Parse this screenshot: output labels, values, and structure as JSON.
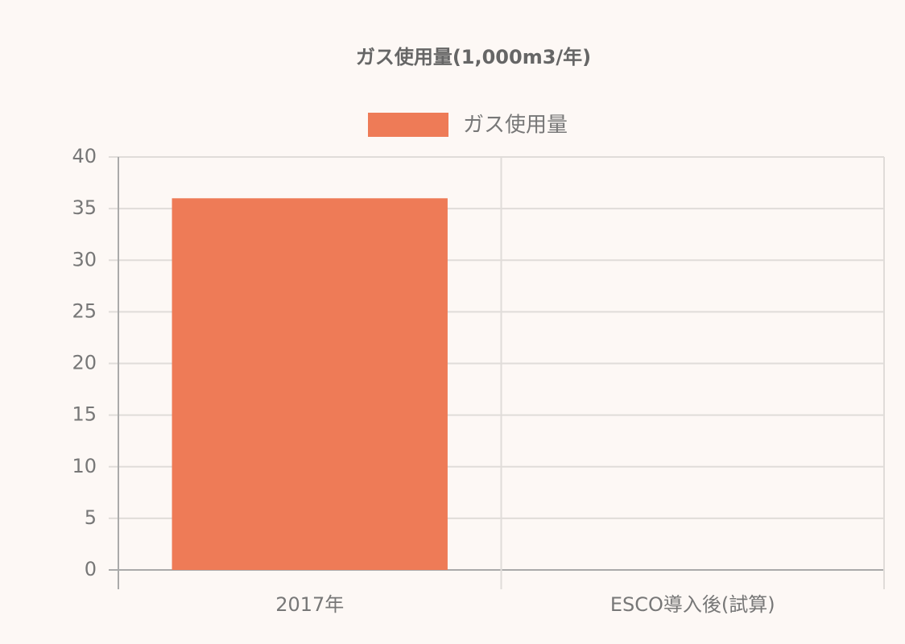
{
  "chart_data": {
    "type": "bar",
    "title": "ガス使用量(1,000m3/年)",
    "categories": [
      "2017年",
      "ESCO導入後(試算)"
    ],
    "series": [
      {
        "name": "ガス使用量",
        "color": "#ee7b57",
        "values": [
          36,
          null
        ]
      }
    ],
    "ylim": [
      0,
      40
    ],
    "yticks": [
      0,
      5,
      10,
      15,
      20,
      25,
      30,
      35,
      40
    ],
    "grid": true,
    "legend": "top"
  }
}
